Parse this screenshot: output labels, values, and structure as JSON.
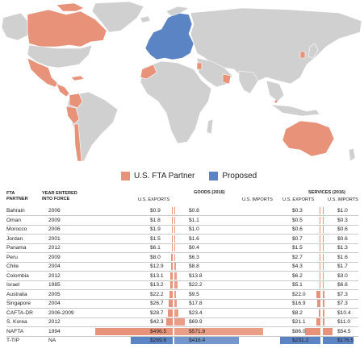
{
  "legend": {
    "items": [
      {
        "label": "U.S. FTA Partner",
        "color": "#e8927a"
      },
      {
        "label": "Proposed",
        "color": "#5b84c4"
      }
    ]
  },
  "colors": {
    "partner": "#e8927a",
    "proposed": "#5b84c4",
    "land": "#d0d0d0",
    "bar_exports": "#e8927a",
    "bar_proposed": "#5b84c4"
  },
  "table": {
    "headers": {
      "partner": [
        "FTA",
        "PARTNER"
      ],
      "year": [
        "YEAR ENTERED",
        "INTO FORCE"
      ],
      "goods_group": "GOODS (2016)",
      "services_group": "SERVICES (2016)",
      "us_exports": "U.S. EXPORTS",
      "us_imports": "U.S. IMPORTS"
    }
  },
  "chart_data": {
    "type": "table",
    "units": "$ billions",
    "rows": [
      {
        "partner": "Bahrain",
        "year": "2006",
        "goods_exports": "$0.9",
        "goods_imports": "$0.8",
        "services_exports": "$0.3",
        "services_imports": "$1.0",
        "ge": 0.9,
        "gi": 0.8,
        "se": 0.3,
        "si": 1.0,
        "proposed": false
      },
      {
        "partner": "Oman",
        "year": "2009",
        "goods_exports": "$1.8",
        "goods_imports": "$1.1",
        "services_exports": "$0.5",
        "services_imports": "$0.3",
        "ge": 1.8,
        "gi": 1.1,
        "se": 0.5,
        "si": 0.3,
        "proposed": false
      },
      {
        "partner": "Morocco",
        "year": "2006",
        "goods_exports": "$1.9",
        "goods_imports": "$1.0",
        "services_exports": "$0.6",
        "services_imports": "$0.6",
        "ge": 1.9,
        "gi": 1.0,
        "se": 0.6,
        "si": 0.6,
        "proposed": false
      },
      {
        "partner": "Jordan",
        "year": "2001",
        "goods_exports": "$1.5",
        "goods_imports": "$1.6",
        "services_exports": "$0.7",
        "services_imports": "$0.6",
        "ge": 1.5,
        "gi": 1.6,
        "se": 0.7,
        "si": 0.6,
        "proposed": false
      },
      {
        "partner": "Panama",
        "year": "2012",
        "goods_exports": "$6.1",
        "goods_imports": "$0.4",
        "services_exports": "$1.5",
        "services_imports": "$1.3",
        "ge": 6.1,
        "gi": 0.4,
        "se": 1.5,
        "si": 1.3,
        "proposed": false
      },
      {
        "partner": "Peru",
        "year": "2009",
        "goods_exports": "$8.0",
        "goods_imports": "$6.3",
        "services_exports": "$2.7",
        "services_imports": "$1.6",
        "ge": 8.0,
        "gi": 6.3,
        "se": 2.7,
        "si": 1.6,
        "proposed": false
      },
      {
        "partner": "Chile",
        "year": "2004",
        "goods_exports": "$12.9",
        "goods_imports": "$8.8",
        "services_exports": "$4.3",
        "services_imports": "$1.7",
        "ge": 12.9,
        "gi": 8.8,
        "se": 4.3,
        "si": 1.7,
        "proposed": false
      },
      {
        "partner": "Colombia",
        "year": "2012",
        "goods_exports": "$13.1",
        "goods_imports": "$13.8",
        "services_exports": "$6.2",
        "services_imports": "$3.0",
        "ge": 13.1,
        "gi": 13.8,
        "se": 6.2,
        "si": 3.0,
        "proposed": false
      },
      {
        "partner": "Israel",
        "year": "1985",
        "goods_exports": "$13.2",
        "goods_imports": "$22.2",
        "services_exports": "$5.1",
        "services_imports": "$6.6",
        "ge": 13.2,
        "gi": 22.2,
        "se": 5.1,
        "si": 6.6,
        "proposed": false
      },
      {
        "partner": "Australia",
        "year": "2005",
        "goods_exports": "$22.2",
        "goods_imports": "$9.5",
        "services_exports": "$22.0",
        "services_imports": "$7.3",
        "ge": 22.2,
        "gi": 9.5,
        "se": 22.0,
        "si": 7.3,
        "proposed": false
      },
      {
        "partner": "Singapore",
        "year": "2004",
        "goods_exports": "$26.7",
        "goods_imports": "$17.8",
        "services_exports": "$16.9",
        "services_imports": "$7.3",
        "ge": 26.7,
        "gi": 17.8,
        "se": 16.9,
        "si": 7.3,
        "proposed": false
      },
      {
        "partner": "CAFTA-DR",
        "year": "2006-2009",
        "goods_exports": "$28.7",
        "goods_imports": "$23.4",
        "services_exports": "$8.2",
        "services_imports": "$10.4",
        "ge": 28.7,
        "gi": 23.4,
        "se": 8.2,
        "si": 10.4,
        "proposed": false
      },
      {
        "partner": "S. Korea",
        "year": "2012",
        "goods_exports": "$42.3",
        "goods_imports": "$69.9",
        "services_exports": "$21.1",
        "services_imports": "$11.0",
        "ge": 42.3,
        "gi": 69.9,
        "se": 21.1,
        "si": 11.0,
        "proposed": false
      },
      {
        "partner": "NAFTA",
        "year": "1994",
        "goods_exports": "$496.5",
        "goods_imports": "$571.8",
        "services_exports": "$86.0",
        "services_imports": "$54.5",
        "ge": 496.5,
        "gi": 571.8,
        "se": 86.0,
        "si": 54.5,
        "proposed": false
      },
      {
        "partner": "T-TIP",
        "year": "NA",
        "goods_exports": "$269.6",
        "goods_imports": "$416.4",
        "services_exports": "$231.2",
        "services_imports": "$176.5",
        "ge": 269.6,
        "gi": 416.4,
        "se": 231.2,
        "si": 176.5,
        "proposed": true
      }
    ]
  }
}
